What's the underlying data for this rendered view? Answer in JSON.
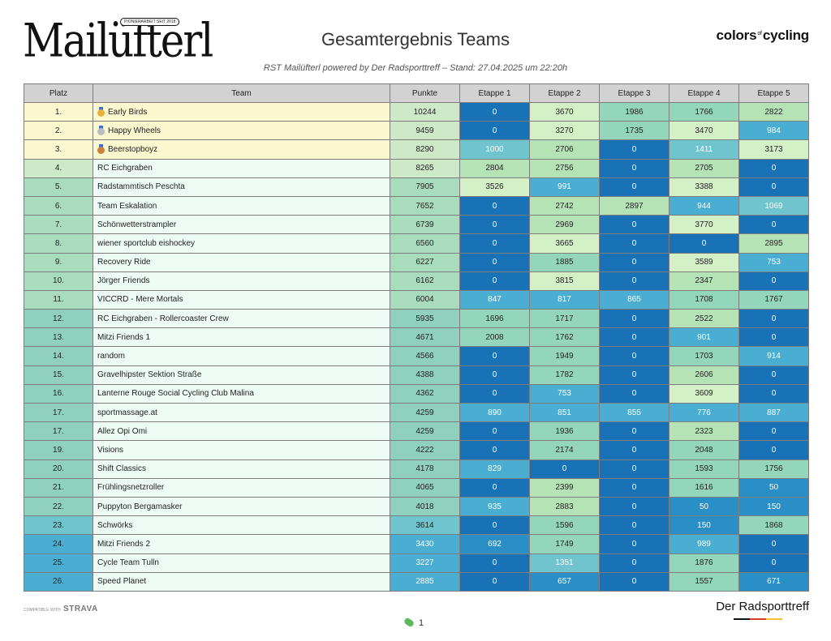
{
  "header": {
    "logo_text": "Mailüfterl",
    "logo_tag": "PIONIERARBEIT SEIT 2018",
    "title": "Gesamtergebnis Teams",
    "subtitle": "RST Mailüfterl powered by Der Radsporttreff – Stand: 27.04.2025 um 22:20h",
    "sponsor_a": "colors",
    "sponsor_of": "of",
    "sponsor_b": "cycling"
  },
  "table": {
    "columns": [
      "Platz",
      "Team",
      "Punkte",
      "Etappe 1",
      "Etappe 2",
      "Etappe 3",
      "Etappe 4",
      "Etappe 5"
    ],
    "rows": [
      {
        "platz": "1.",
        "team": "Early Birds",
        "medal": "gold",
        "punkte": "10244",
        "etappen": [
          "0",
          "3670",
          "1986",
          "1766",
          "2822"
        ]
      },
      {
        "platz": "2.",
        "team": "Happy Wheels",
        "medal": "silver",
        "punkte": "9459",
        "etappen": [
          "0",
          "3270",
          "1735",
          "3470",
          "984"
        ]
      },
      {
        "platz": "3.",
        "team": "Beerstopboyz",
        "medal": "bronze",
        "punkte": "8290",
        "etappen": [
          "1000",
          "2706",
          "0",
          "1411",
          "3173"
        ]
      },
      {
        "platz": "4.",
        "team": "RC Eichgraben",
        "medal": "",
        "punkte": "8265",
        "etappen": [
          "2804",
          "2756",
          "0",
          "2705",
          "0"
        ]
      },
      {
        "platz": "5.",
        "team": "Radstammtisch Peschta",
        "medal": "",
        "punkte": "7905",
        "etappen": [
          "3526",
          "991",
          "0",
          "3388",
          "0"
        ]
      },
      {
        "platz": "6.",
        "team": "Team Eskalation",
        "medal": "",
        "punkte": "7652",
        "etappen": [
          "0",
          "2742",
          "2897",
          "944",
          "1069"
        ]
      },
      {
        "platz": "7.",
        "team": "Schönwetterstrampler",
        "medal": "",
        "punkte": "6739",
        "etappen": [
          "0",
          "2969",
          "0",
          "3770",
          "0"
        ]
      },
      {
        "platz": "8.",
        "team": "wiener sportclub eishockey",
        "medal": "",
        "punkte": "6560",
        "etappen": [
          "0",
          "3665",
          "0",
          "0",
          "2895"
        ]
      },
      {
        "platz": "9.",
        "team": "Recovery Ride",
        "medal": "",
        "punkte": "6227",
        "etappen": [
          "0",
          "1885",
          "0",
          "3589",
          "753"
        ]
      },
      {
        "platz": "10.",
        "team": "Jörger Friends",
        "medal": "",
        "punkte": "6162",
        "etappen": [
          "0",
          "3815",
          "0",
          "2347",
          "0"
        ]
      },
      {
        "platz": "11.",
        "team": "VICCRD - Mere Mortals",
        "medal": "",
        "punkte": "6004",
        "etappen": [
          "847",
          "817",
          "865",
          "1708",
          "1767"
        ]
      },
      {
        "platz": "12.",
        "team": "RC Eichgraben - Rollercoaster Crew",
        "medal": "",
        "punkte": "5935",
        "etappen": [
          "1696",
          "1717",
          "0",
          "2522",
          "0"
        ]
      },
      {
        "platz": "13.",
        "team": "Mitzi Friends 1",
        "medal": "",
        "punkte": "4671",
        "etappen": [
          "2008",
          "1762",
          "0",
          "901",
          "0"
        ]
      },
      {
        "platz": "14.",
        "team": "random",
        "medal": "",
        "punkte": "4566",
        "etappen": [
          "0",
          "1949",
          "0",
          "1703",
          "914"
        ]
      },
      {
        "platz": "15.",
        "team": "Gravelhipster Sektion Straße",
        "medal": "",
        "punkte": "4388",
        "etappen": [
          "0",
          "1782",
          "0",
          "2606",
          "0"
        ]
      },
      {
        "platz": "16.",
        "team": "Lanterne Rouge Social Cycling Club Malina",
        "medal": "",
        "punkte": "4362",
        "etappen": [
          "0",
          "753",
          "0",
          "3609",
          "0"
        ]
      },
      {
        "platz": "17.",
        "team": "sportmassage.at",
        "medal": "",
        "punkte": "4259",
        "etappen": [
          "890",
          "851",
          "855",
          "776",
          "887"
        ]
      },
      {
        "platz": "17.",
        "team": "Allez Opi Omi",
        "medal": "",
        "punkte": "4259",
        "etappen": [
          "0",
          "1936",
          "0",
          "2323",
          "0"
        ]
      },
      {
        "platz": "19.",
        "team": "Visions",
        "medal": "",
        "punkte": "4222",
        "etappen": [
          "0",
          "2174",
          "0",
          "2048",
          "0"
        ]
      },
      {
        "platz": "20.",
        "team": "Shift Classics",
        "medal": "",
        "punkte": "4178",
        "etappen": [
          "829",
          "0",
          "0",
          "1593",
          "1756"
        ]
      },
      {
        "platz": "21.",
        "team": "Frühlingsnetzroller",
        "medal": "",
        "punkte": "4065",
        "etappen": [
          "0",
          "2399",
          "0",
          "1616",
          "50"
        ]
      },
      {
        "platz": "22.",
        "team": "Puppyton Bergamasker",
        "medal": "",
        "punkte": "4018",
        "etappen": [
          "935",
          "2883",
          "0",
          "50",
          "150"
        ]
      },
      {
        "platz": "23.",
        "team": "Schwörks",
        "medal": "",
        "punkte": "3614",
        "etappen": [
          "0",
          "1596",
          "0",
          "150",
          "1868"
        ]
      },
      {
        "platz": "24.",
        "team": "Mitzi Friends 2",
        "medal": "",
        "punkte": "3430",
        "etappen": [
          "692",
          "1749",
          "0",
          "989",
          "0"
        ]
      },
      {
        "platz": "25.",
        "team": "Cycle Team Tulln",
        "medal": "",
        "punkte": "3227",
        "etappen": [
          "0",
          "1351",
          "0",
          "1876",
          "0"
        ]
      },
      {
        "platz": "26.",
        "team": "Speed Planet",
        "medal": "",
        "punkte": "2885",
        "etappen": [
          "0",
          "657",
          "0",
          "1557",
          "671"
        ]
      }
    ]
  },
  "colors": {
    "header_bg": "#d2d2d2",
    "podium_bg": "#fbf7cf",
    "row_bg_light": "#eefbf5",
    "border": "#7d7d7d",
    "medal_gold": "#e8b23a",
    "medal_silver": "#b9bcc2",
    "medal_bronze": "#c9813f",
    "scale": [
      "#1a72b6",
      "#2b8fc7",
      "#4aaed3",
      "#6fc4cd",
      "#94d6bb",
      "#b6e3b6",
      "#d4f0c6"
    ]
  },
  "footer": {
    "strava_prefix": "COMPATIBLE WITH",
    "strava_brand": "STRAVA",
    "brand": "Der Radsporttreff",
    "brand_stripe": [
      "#111111",
      "#d93a2b",
      "#f2c230"
    ],
    "page_number": "1",
    "page_icon": "pill-icon"
  }
}
